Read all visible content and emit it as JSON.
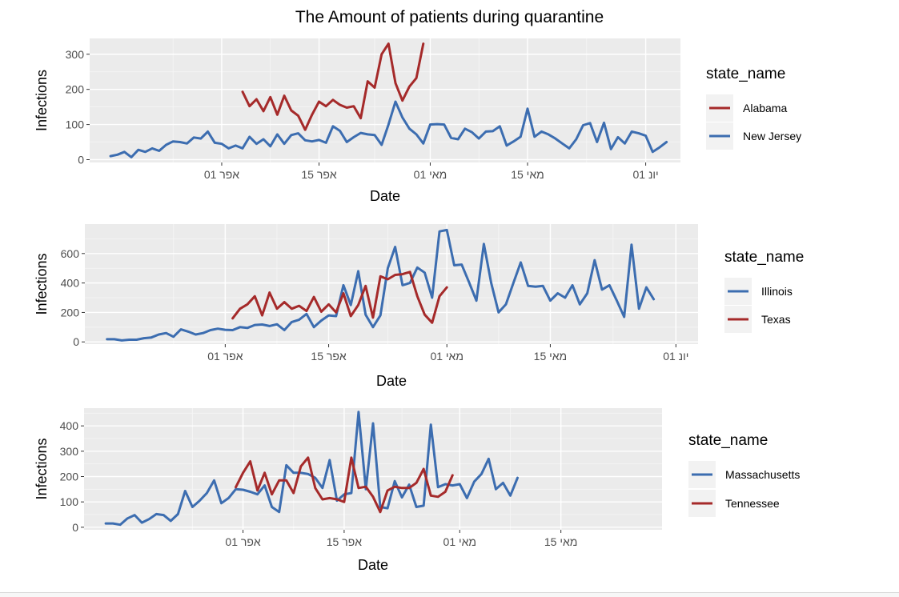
{
  "title": "The Amount of patients during quarantine",
  "colors": {
    "red": "#a52a2a",
    "blue": "#3c6db0",
    "panel": "#ebebeb"
  },
  "chart_data": [
    {
      "type": "line",
      "xlabel": "Date",
      "ylabel": "Infections",
      "ylim": [
        -8,
        345
      ],
      "xlim": [
        -19,
        66
      ],
      "y_ticks": [
        0,
        100,
        200,
        300
      ],
      "x_ticks": [
        {
          "x": 0,
          "label": "אפר 01"
        },
        {
          "x": 14,
          "label": "אפר 15"
        },
        {
          "x": 30,
          "label": "מאי 01"
        },
        {
          "x": 44,
          "label": "מאי 15"
        },
        {
          "x": 61,
          "label": "יונ 01"
        }
      ],
      "legend_title": "state_name",
      "legend_position": "right",
      "series": [
        {
          "name": "Alabama",
          "color": "#a52a2a",
          "start": 3,
          "values": [
            193,
            152,
            172,
            138,
            178,
            128,
            182,
            140,
            125,
            85,
            128,
            165,
            152,
            170,
            156,
            148,
            152,
            118,
            223,
            205,
            300,
            330,
            218,
            168,
            208,
            232,
            330
          ]
        },
        {
          "name": "New Jersey",
          "color": "#3c6db0",
          "start": -16,
          "values": [
            10,
            14,
            22,
            7,
            28,
            22,
            32,
            25,
            42,
            52,
            50,
            46,
            63,
            60,
            80,
            48,
            45,
            32,
            40,
            32,
            65,
            45,
            58,
            38,
            72,
            45,
            70,
            75,
            55,
            52,
            56,
            48,
            95,
            82,
            50,
            64,
            76,
            72,
            70,
            42,
            100,
            165,
            120,
            88,
            72,
            46,
            100,
            101,
            100,
            62,
            58,
            88,
            78,
            60,
            80,
            81,
            95,
            40,
            52,
            65,
            145,
            65,
            80,
            72,
            60,
            46,
            32,
            58,
            98,
            104,
            50,
            105,
            30,
            64,
            46,
            80,
            75,
            68,
            22,
            35,
            50
          ]
        }
      ]
    },
    {
      "type": "line",
      "xlabel": "Date",
      "ylabel": "Infections",
      "ylim": [
        -15,
        800
      ],
      "xlim": [
        -19,
        64
      ],
      "y_ticks": [
        0,
        200,
        400,
        600
      ],
      "x_ticks": [
        {
          "x": 0,
          "label": "אפר 01"
        },
        {
          "x": 14,
          "label": "אפר 15"
        },
        {
          "x": 30,
          "label": "מאי 01"
        },
        {
          "x": 44,
          "label": "מאי 15"
        },
        {
          "x": 61,
          "label": "יונ 01"
        }
      ],
      "legend_title": "state_name",
      "legend_position": "right",
      "series": [
        {
          "name": "Illinois",
          "color": "#3c6db0",
          "start": -16,
          "values": [
            18,
            18,
            10,
            15,
            15,
            25,
            30,
            50,
            60,
            35,
            85,
            70,
            50,
            60,
            80,
            90,
            82,
            80,
            100,
            95,
            115,
            118,
            108,
            120,
            80,
            135,
            150,
            190,
            100,
            145,
            180,
            175,
            385,
            250,
            480,
            185,
            100,
            180,
            500,
            645,
            385,
            400,
            505,
            470,
            300,
            750,
            760,
            520,
            525,
            405,
            280,
            665,
            400,
            200,
            255,
            400,
            540,
            380,
            375,
            380,
            280,
            330,
            300,
            385,
            255,
            330,
            555,
            355,
            385,
            280,
            170,
            660,
            225,
            370,
            290
          ]
        },
        {
          "name": "Texas",
          "color": "#a52a2a",
          "start": 1,
          "values": [
            160,
            225,
            255,
            310,
            180,
            335,
            225,
            270,
            225,
            245,
            210,
            305,
            205,
            255,
            200,
            330,
            175,
            250,
            380,
            165,
            445,
            425,
            455,
            460,
            475,
            310,
            185,
            130,
            310,
            370
          ]
        }
      ]
    },
    {
      "type": "line",
      "xlabel": "Date",
      "ylabel": "Infections",
      "ylim": [
        -10,
        470
      ],
      "xlim": [
        -22,
        58
      ],
      "y_ticks": [
        0,
        100,
        200,
        300,
        400
      ],
      "x_ticks": [
        {
          "x": 0,
          "label": "אפר 01"
        },
        {
          "x": 14,
          "label": "אפר 15"
        },
        {
          "x": 30,
          "label": "מאי 01"
        },
        {
          "x": 44,
          "label": "מאי 15"
        }
      ],
      "legend_title": "state_name",
      "legend_position": "right",
      "series": [
        {
          "name": "Massachusetts",
          "color": "#3c6db0",
          "start": -19,
          "values": [
            15,
            15,
            10,
            35,
            48,
            18,
            32,
            52,
            48,
            25,
            52,
            143,
            80,
            105,
            135,
            185,
            95,
            115,
            150,
            148,
            140,
            130,
            165,
            80,
            60,
            245,
            215,
            215,
            210,
            195,
            155,
            265,
            105,
            130,
            135,
            455,
            150,
            410,
            80,
            75,
            182,
            118,
            168,
            80,
            85,
            405,
            158,
            170,
            165,
            170,
            115,
            180,
            210,
            270,
            150,
            175,
            125,
            195
          ]
        },
        {
          "name": "Tennessee",
          "color": "#a52a2a",
          "start": -1,
          "values": [
            158,
            215,
            260,
            145,
            215,
            130,
            185,
            185,
            135,
            240,
            275,
            155,
            110,
            115,
            110,
            100,
            275,
            155,
            160,
            120,
            60,
            145,
            160,
            155,
            155,
            175,
            230,
            125,
            120,
            140,
            205
          ]
        }
      ]
    }
  ]
}
